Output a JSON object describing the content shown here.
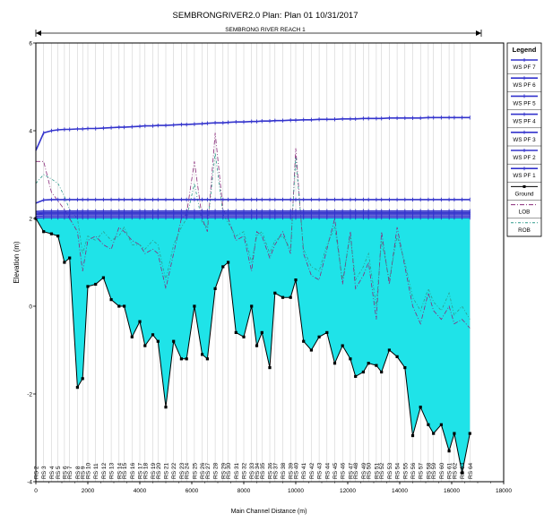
{
  "chart_data": {
    "type": "line",
    "title": "SEMBRONGRIVER2.0      Plan: Plan 01    10/31/2017",
    "reach_label": "SEMBRONG RIVER REACH 1",
    "xlabel": "Main Channel Distance (m)",
    "ylabel": "Elevation (m)",
    "xlim": [
      0,
      18000
    ],
    "ylim": [
      -4,
      6
    ],
    "x_ticks": [
      "0",
      "2000",
      "4000",
      "6000",
      "8000",
      "10000",
      "12000",
      "14000",
      "16000",
      "18000"
    ],
    "y_ticks": [
      "-4",
      "-2",
      "0",
      "2",
      "4",
      "6"
    ],
    "legend_title": "Legend",
    "legend_position": "right",
    "grid": true,
    "colors": {
      "water_fill": "#1fe3e8",
      "ws_lines": "#3333cc",
      "ground": "#000000",
      "lob": "#8a2a7a",
      "rob": "#2e9a8a",
      "grid": "#c8c8c8"
    },
    "x": [
      0,
      300,
      600,
      850,
      1100,
      1300,
      1600,
      1800,
      2000,
      2300,
      2600,
      2900,
      3200,
      3400,
      3700,
      4000,
      4200,
      4500,
      4700,
      5000,
      5300,
      5600,
      5800,
      6100,
      6400,
      6600,
      6900,
      7200,
      7400,
      7700,
      8000,
      8300,
      8500,
      8700,
      9000,
      9200,
      9500,
      9800,
      10000,
      10300,
      10600,
      10900,
      11200,
      11500,
      11800,
      12100,
      12300,
      12600,
      12800,
      13100,
      13300,
      13600,
      13900,
      14200,
      14500,
      14800,
      15100,
      15300,
      15600,
      15900,
      16100,
      16400,
      16700
    ],
    "series": [
      {
        "name": "WS PF 7",
        "values": [
          3.55,
          3.95,
          4.0,
          4.02,
          4.03,
          4.03,
          4.04,
          4.04,
          4.05,
          4.05,
          4.06,
          4.07,
          4.08,
          4.08,
          4.09,
          4.1,
          4.11,
          4.11,
          4.12,
          4.12,
          4.13,
          4.14,
          4.14,
          4.15,
          4.16,
          4.17,
          4.18,
          4.18,
          4.19,
          4.2,
          4.2,
          4.21,
          4.21,
          4.22,
          4.22,
          4.23,
          4.23,
          4.24,
          4.24,
          4.25,
          4.25,
          4.26,
          4.26,
          4.26,
          4.27,
          4.27,
          4.27,
          4.28,
          4.28,
          4.28,
          4.28,
          4.29,
          4.29,
          4.29,
          4.29,
          4.29,
          4.3,
          4.3,
          4.3,
          4.3,
          4.3,
          4.3,
          4.3
        ]
      },
      {
        "name": "WS PF 6",
        "values": [
          2.35,
          2.42,
          2.43,
          2.43,
          2.43,
          2.43,
          2.43,
          2.43,
          2.43,
          2.43,
          2.43,
          2.43,
          2.43,
          2.43,
          2.43,
          2.43,
          2.43,
          2.43,
          2.43,
          2.43,
          2.43,
          2.43,
          2.43,
          2.43,
          2.43,
          2.43,
          2.43,
          2.43,
          2.43,
          2.43,
          2.43,
          2.43,
          2.43,
          2.43,
          2.43,
          2.43,
          2.43,
          2.43,
          2.43,
          2.43,
          2.43,
          2.43,
          2.43,
          2.43,
          2.43,
          2.43,
          2.43,
          2.43,
          2.43,
          2.43,
          2.43,
          2.43,
          2.43,
          2.43,
          2.43,
          2.43,
          2.43,
          2.43,
          2.43,
          2.43,
          2.43,
          2.43,
          2.43
        ]
      },
      {
        "name": "WS PF 5",
        "values": [
          2.16,
          2.17,
          2.17,
          2.17,
          2.17,
          2.17,
          2.17,
          2.17,
          2.17,
          2.17,
          2.17,
          2.17,
          2.17,
          2.17,
          2.17,
          2.17,
          2.17,
          2.17,
          2.17,
          2.17,
          2.17,
          2.17,
          2.17,
          2.17,
          2.17,
          2.17,
          2.17,
          2.17,
          2.17,
          2.17,
          2.17,
          2.17,
          2.17,
          2.17,
          2.17,
          2.17,
          2.17,
          2.17,
          2.17,
          2.17,
          2.17,
          2.17,
          2.17,
          2.17,
          2.17,
          2.17,
          2.17,
          2.17,
          2.17,
          2.17,
          2.17,
          2.17,
          2.17,
          2.17,
          2.17,
          2.17,
          2.17,
          2.17,
          2.17,
          2.17,
          2.17,
          2.17,
          2.17
        ]
      },
      {
        "name": "WS PF 4",
        "values": [
          2.12,
          2.13,
          2.13,
          2.13,
          2.13,
          2.13,
          2.13,
          2.13,
          2.13,
          2.13,
          2.13,
          2.13,
          2.13,
          2.13,
          2.13,
          2.13,
          2.13,
          2.13,
          2.13,
          2.13,
          2.13,
          2.13,
          2.13,
          2.13,
          2.13,
          2.13,
          2.13,
          2.13,
          2.13,
          2.13,
          2.13,
          2.13,
          2.13,
          2.13,
          2.13,
          2.13,
          2.13,
          2.13,
          2.13,
          2.13,
          2.13,
          2.13,
          2.13,
          2.13,
          2.13,
          2.13,
          2.13,
          2.13,
          2.13,
          2.13,
          2.13,
          2.13,
          2.13,
          2.13,
          2.13,
          2.13,
          2.13,
          2.13,
          2.13,
          2.13,
          2.13,
          2.13,
          2.13
        ]
      },
      {
        "name": "WS PF 3",
        "values": [
          2.09,
          2.1,
          2.1,
          2.1,
          2.1,
          2.1,
          2.1,
          2.1,
          2.1,
          2.1,
          2.1,
          2.1,
          2.1,
          2.1,
          2.1,
          2.1,
          2.1,
          2.1,
          2.1,
          2.1,
          2.1,
          2.1,
          2.1,
          2.1,
          2.1,
          2.1,
          2.1,
          2.1,
          2.1,
          2.1,
          2.1,
          2.1,
          2.1,
          2.1,
          2.1,
          2.1,
          2.1,
          2.1,
          2.1,
          2.1,
          2.1,
          2.1,
          2.1,
          2.1,
          2.1,
          2.1,
          2.1,
          2.1,
          2.1,
          2.1,
          2.1,
          2.1,
          2.1,
          2.1,
          2.1,
          2.1,
          2.1,
          2.1,
          2.1,
          2.1,
          2.1,
          2.1,
          2.1
        ]
      },
      {
        "name": "WS PF 2",
        "values": [
          2.05,
          2.06,
          2.06,
          2.06,
          2.06,
          2.06,
          2.06,
          2.06,
          2.06,
          2.06,
          2.06,
          2.06,
          2.06,
          2.06,
          2.06,
          2.06,
          2.06,
          2.06,
          2.06,
          2.06,
          2.06,
          2.06,
          2.06,
          2.06,
          2.06,
          2.06,
          2.06,
          2.06,
          2.06,
          2.06,
          2.06,
          2.06,
          2.06,
          2.06,
          2.06,
          2.06,
          2.06,
          2.06,
          2.06,
          2.06,
          2.06,
          2.06,
          2.06,
          2.06,
          2.06,
          2.06,
          2.06,
          2.06,
          2.06,
          2.06,
          2.06,
          2.06,
          2.06,
          2.06,
          2.06,
          2.06,
          2.06,
          2.06,
          2.06,
          2.06,
          2.06,
          2.06,
          2.06
        ]
      },
      {
        "name": "WS PF 1",
        "values": [
          2.01,
          2.02,
          2.02,
          2.02,
          2.02,
          2.02,
          2.02,
          2.02,
          2.02,
          2.02,
          2.02,
          2.02,
          2.02,
          2.02,
          2.02,
          2.02,
          2.02,
          2.02,
          2.02,
          2.02,
          2.02,
          2.02,
          2.02,
          2.02,
          2.02,
          2.02,
          2.02,
          2.02,
          2.02,
          2.02,
          2.02,
          2.02,
          2.02,
          2.02,
          2.02,
          2.02,
          2.02,
          2.02,
          2.02,
          2.02,
          2.02,
          2.02,
          2.02,
          2.02,
          2.02,
          2.02,
          2.02,
          2.02,
          2.02,
          2.02,
          2.02,
          2.02,
          2.02,
          2.02,
          2.02,
          2.02,
          2.02,
          2.02,
          2.02,
          2.02,
          2.02,
          2.02,
          2.02
        ]
      },
      {
        "name": "Ground",
        "values": [
          2.0,
          1.7,
          1.65,
          1.6,
          1.0,
          1.1,
          -1.85,
          -1.65,
          0.45,
          0.5,
          0.65,
          0.15,
          0.0,
          0.0,
          -0.7,
          -0.35,
          -0.9,
          -0.65,
          -0.8,
          -2.3,
          -0.8,
          -1.2,
          -1.2,
          0.0,
          -1.1,
          -1.2,
          0.4,
          0.9,
          1.0,
          -0.6,
          -0.7,
          0.0,
          -0.9,
          -0.6,
          -1.4,
          0.3,
          0.2,
          0.2,
          0.6,
          -0.8,
          -1.0,
          -0.7,
          -0.6,
          -1.3,
          -0.9,
          -1.2,
          -1.6,
          -1.5,
          -1.3,
          -1.35,
          -1.5,
          -1.0,
          -1.15,
          -1.4,
          -2.95,
          -2.3,
          -2.7,
          -2.9,
          -2.7,
          -3.3,
          -2.9,
          -3.8,
          -2.9
        ]
      },
      {
        "name": "LOB",
        "values": [
          3.3,
          3.3,
          2.6,
          2.4,
          2.2,
          2.0,
          1.7,
          0.8,
          1.5,
          1.6,
          1.4,
          1.3,
          1.8,
          1.7,
          1.5,
          1.4,
          1.2,
          1.3,
          1.2,
          0.4,
          1.2,
          2.0,
          2.1,
          3.3,
          2.0,
          1.7,
          3.95,
          2.2,
          2.0,
          1.5,
          1.6,
          0.8,
          1.7,
          1.6,
          1.1,
          1.4,
          1.7,
          1.2,
          3.6,
          1.2,
          0.7,
          0.6,
          1.3,
          2.0,
          0.5,
          1.7,
          0.4,
          0.7,
          1.0,
          -0.3,
          1.7,
          0.5,
          1.8,
          0.9,
          0.0,
          -0.4,
          0.3,
          -0.1,
          -0.3,
          0.0,
          -0.4,
          -0.3,
          -0.5
        ]
      },
      {
        "name": "ROB",
        "values": [
          2.8,
          3.0,
          2.9,
          2.8,
          2.5,
          2.2,
          2.0,
          1.2,
          1.6,
          1.5,
          1.7,
          1.5,
          1.6,
          1.8,
          1.4,
          1.4,
          1.3,
          1.5,
          1.4,
          0.6,
          1.4,
          1.8,
          2.0,
          2.8,
          1.9,
          1.8,
          3.5,
          2.1,
          1.9,
          1.6,
          1.7,
          1.0,
          1.6,
          1.7,
          1.2,
          1.5,
          1.6,
          1.3,
          3.4,
          1.3,
          0.9,
          0.8,
          1.4,
          1.8,
          0.6,
          1.6,
          0.6,
          0.9,
          1.2,
          0.0,
          1.5,
          0.6,
          1.6,
          1.0,
          0.2,
          -0.1,
          0.4,
          0.1,
          -0.1,
          0.3,
          -0.2,
          0.0,
          -0.3
        ]
      }
    ],
    "station_labels": [
      "RS 2",
      "RS 3",
      "RS 4",
      "RS 5",
      "RS 6",
      "RS 7",
      "RS 8",
      "RS 9",
      "RS 10",
      "RS 11",
      "RS 12",
      "RS 13",
      "RS 14",
      "RS 15",
      "RS 16",
      "RS 17",
      "RS 18",
      "RS 19",
      "RS 20",
      "RS 21",
      "RS 22",
      "RS 23",
      "RS 24",
      "RS 25",
      "RS 26",
      "RS 27",
      "RS 28",
      "RS 29",
      "RS 30",
      "RS 31",
      "RS 32",
      "RS 33",
      "RS 34",
      "RS 35",
      "RS 36",
      "RS 37",
      "RS 38",
      "RS 39",
      "RS 40",
      "RS 41",
      "RS 42",
      "RS 43",
      "RS 44",
      "RS 45",
      "RS 46",
      "RS 47",
      "RS 48",
      "RS 49",
      "RS 50",
      "RS 51",
      "RS 52",
      "RS 53",
      "RS 54",
      "RS 55",
      "RS 56",
      "RS 57",
      "RS 58",
      "RS 59",
      "RS 60",
      "RS 61",
      "RS 62",
      "RS 63",
      "RS 64"
    ]
  }
}
